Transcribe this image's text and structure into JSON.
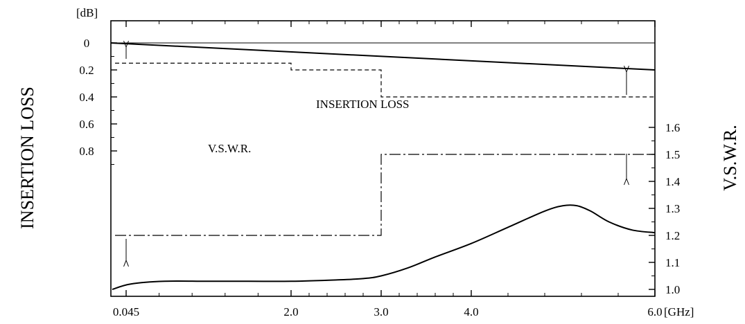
{
  "chart_data": {
    "type": "line",
    "x_axis": {
      "ticks": [
        "0.045",
        "2.0",
        "3.0",
        "4.0",
        "6.0"
      ],
      "unit_label": "[GHz]",
      "range_ghz": [
        0.045,
        6.0
      ]
    },
    "left_axis": {
      "label": "INSERTION LOSS",
      "unit_label": "[dB]",
      "ticks": [
        "0",
        "0.2",
        "0.4",
        "0.6",
        "0.8"
      ],
      "tick_values": [
        0,
        0.2,
        0.4,
        0.6,
        0.8
      ],
      "range": [
        0,
        1.0
      ],
      "inverted": true
    },
    "right_axis": {
      "label": "V.S.W.R.",
      "ticks": [
        "1.0",
        "1.1",
        "1.2",
        "1.3",
        "1.4",
        "1.5",
        "1.6"
      ],
      "tick_values": [
        1.0,
        1.1,
        1.2,
        1.3,
        1.4,
        1.5,
        1.6
      ],
      "range": [
        1.0,
        1.6
      ]
    },
    "reference_line_db": 0,
    "insertion_loss_typical": {
      "x": [
        0.045,
        6.0
      ],
      "y": [
        0,
        0.2
      ]
    },
    "insertion_loss_limit": {
      "style": "dashed",
      "x": [
        0.045,
        2.0,
        2.0,
        3.0,
        3.0,
        6.0
      ],
      "y": [
        0.15,
        0.15,
        0.2,
        0.2,
        0.4,
        0.4
      ]
    },
    "vswr_limit": {
      "style": "dash-dot",
      "x": [
        0.045,
        3.0,
        3.0,
        6.0
      ],
      "y": [
        1.2,
        1.2,
        1.5,
        1.5
      ]
    },
    "vswr_typical": {
      "x": [
        0.045,
        0.1,
        0.5,
        1.0,
        1.5,
        2.0,
        2.5,
        2.8,
        3.0,
        3.3,
        3.6,
        4.0,
        4.4,
        4.8,
        5.0,
        5.15,
        5.3,
        5.5,
        5.75,
        6.0
      ],
      "y": [
        1.0,
        1.02,
        1.03,
        1.03,
        1.03,
        1.03,
        1.035,
        1.04,
        1.05,
        1.08,
        1.12,
        1.17,
        1.23,
        1.29,
        1.31,
        1.31,
        1.29,
        1.25,
        1.22,
        1.21
      ]
    },
    "annotations": [
      {
        "text": "INSERTION   LOSS",
        "x": 3.2,
        "y_db": 0.45
      },
      {
        "text": "V.S.W.R.",
        "x": 2.0,
        "y_db": 0.78
      }
    ]
  }
}
